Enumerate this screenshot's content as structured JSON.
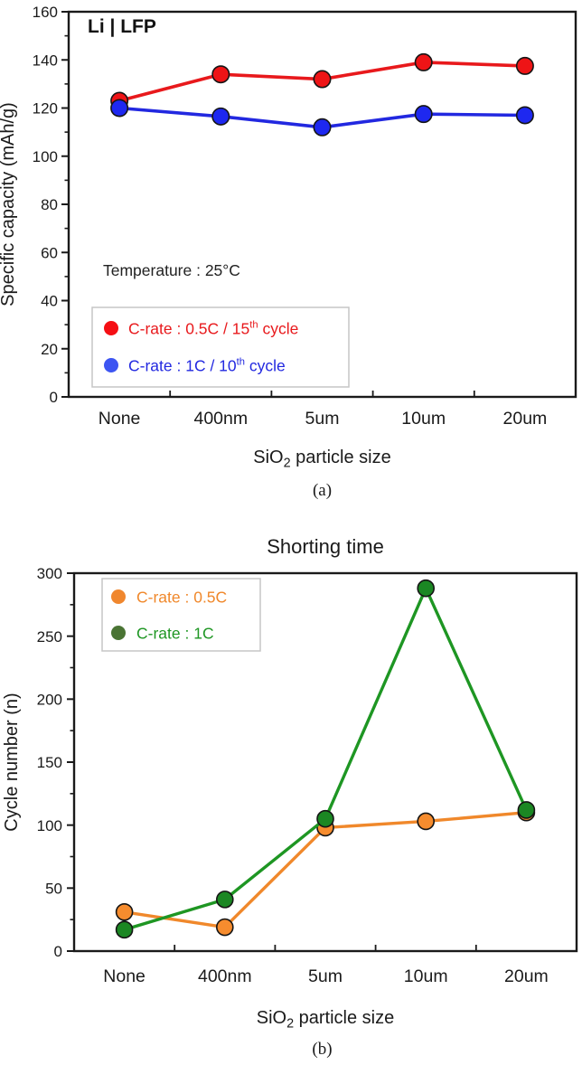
{
  "page": {
    "background": "#ffffff",
    "text_color": "#1a1a1a",
    "axis_color": "#1a1a1a"
  },
  "chart_data": [
    {
      "id": "a",
      "type": "line",
      "panel_label": "Li | LFP",
      "annotation": "Temperature : 25°C",
      "caption": "(a)",
      "xlabel": {
        "base": "SiO",
        "sub": "2",
        "rest": " particle size"
      },
      "ylabel": "Specific capacity (mAh/g)",
      "categories": [
        "None",
        "400nm",
        "5um",
        "10um",
        "20um"
      ],
      "ylim": [
        0,
        160
      ],
      "ytick_step": 20,
      "yminor_step": 10,
      "ytick_labels": [
        "0",
        "20",
        "40",
        "60",
        "80",
        "100",
        "120",
        "140",
        "160"
      ],
      "grid": false,
      "legend_position": "inside-bottom-left",
      "series": [
        {
          "name": "c-rate-0.5C-15th-cycle",
          "label": {
            "base": "C-rate : 0.5C / 15",
            "sup": "th",
            "rest": " cycle"
          },
          "color": "#e8191c",
          "marker_color": "#ee1416",
          "legend_color": "#f50f14",
          "values": [
            123,
            134,
            132,
            139,
            137.5
          ]
        },
        {
          "name": "c-rate-1C-10th-cycle",
          "label": {
            "base": "C-rate : 1C / 10",
            "sup": "th",
            "rest": " cycle"
          },
          "color": "#2228e0",
          "marker_color": "#1e28f0",
          "legend_color": "#3d55f2",
          "values": [
            120,
            116.5,
            112,
            117.5,
            117
          ]
        }
      ]
    },
    {
      "id": "b",
      "type": "line",
      "title": "Shorting time",
      "caption": "(b)",
      "xlabel": {
        "base": "SiO",
        "sub": "2",
        "rest": " particle size"
      },
      "ylabel": "Cycle number (n)",
      "categories": [
        "None",
        "400nm",
        "5um",
        "10um",
        "20um"
      ],
      "ylim": [
        0,
        300
      ],
      "ytick_step": 50,
      "yminor_step": 25,
      "ytick_labels": [
        "0",
        "50",
        "100",
        "150",
        "200",
        "250",
        "300"
      ],
      "grid": false,
      "legend_position": "inside-top-left",
      "series": [
        {
          "name": "c-rate-0.5C",
          "label": {
            "base": "C-rate : 0.5C"
          },
          "color": "#f0882b",
          "marker_color": "#f68c2e",
          "legend_color": "#f0872e",
          "values": [
            31,
            19,
            98,
            103,
            110
          ]
        },
        {
          "name": "c-rate-1C",
          "label": {
            "base": "C-rate : 1C"
          },
          "color": "#1e9623",
          "marker_color": "#1b8723",
          "legend_color": "#4a7434",
          "values": [
            17,
            41,
            105,
            288,
            112
          ]
        }
      ]
    }
  ]
}
